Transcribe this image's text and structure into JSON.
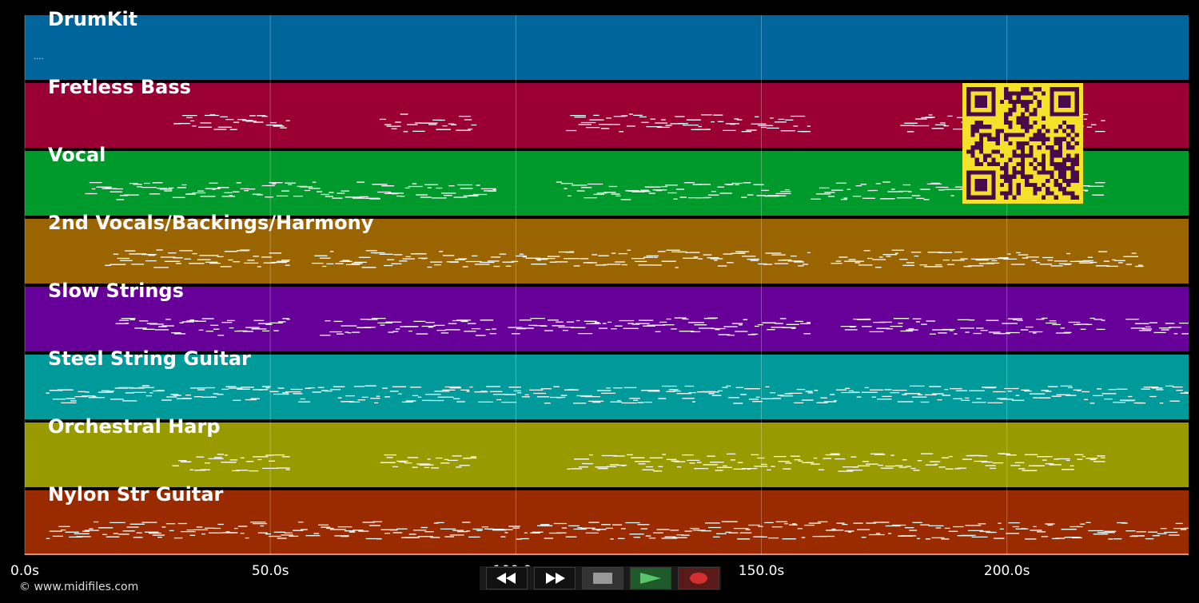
{
  "tracks": [
    {
      "name": "DrumKit",
      "color": "#00659a"
    },
    {
      "name": "Fretless Bass",
      "color": "#9a0033"
    },
    {
      "name": "Vocal",
      "color": "#00992b"
    },
    {
      "name": "2nd Vocals/Backings/Harmony",
      "color": "#9a6500"
    },
    {
      "name": "Slow Strings",
      "color": "#660099"
    },
    {
      "name": "Steel String Guitar",
      "color": "#009a9a"
    },
    {
      "name": "Orchestral Harp",
      "color": "#999900"
    },
    {
      "name": "Nylon Str Guitar",
      "color": "#9a2b00"
    }
  ],
  "timeline": {
    "start_seconds": 0,
    "end_seconds": 237,
    "ticks": [
      "0.0s",
      "50.0s",
      "100.0s",
      "150.0s",
      "200.0s"
    ],
    "tick_values": [
      0,
      50,
      100,
      150,
      200
    ]
  },
  "note_sections": [
    [],
    [
      [
        30,
        54
      ],
      [
        72,
        92
      ],
      [
        110,
        160
      ],
      [
        178,
        220
      ]
    ],
    [
      [
        12,
        96
      ],
      [
        108,
        156
      ],
      [
        160,
        220
      ]
    ],
    [
      [
        16,
        54
      ],
      [
        58,
        160
      ],
      [
        164,
        228
      ]
    ],
    [
      [
        18,
        54
      ],
      [
        60,
        96
      ],
      [
        98,
        160
      ],
      [
        166,
        220
      ],
      [
        224,
        237
      ]
    ],
    [
      [
        4,
        237
      ]
    ],
    [
      [
        30,
        54
      ],
      [
        72,
        92
      ],
      [
        110,
        220
      ]
    ],
    [
      [
        4,
        237
      ]
    ]
  ],
  "transport": {
    "rewind_icon": "rewind-icon",
    "fast_forward_icon": "fast-forward-icon",
    "stop_icon": "stop-icon",
    "play_icon": "play-icon",
    "record_icon": "record-icon"
  },
  "copyright": "© www.midifiles.com",
  "qr_colors": {
    "fg": "#4a0a4a",
    "bg": "#f5e12a"
  }
}
